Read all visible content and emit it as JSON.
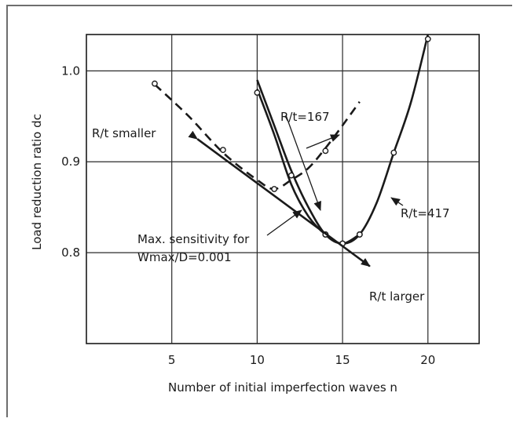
{
  "chart_data": {
    "type": "line",
    "title": "",
    "xlabel": "Number of initial imperfection waves n",
    "ylabel": "Load reduction ratio dc",
    "xlim": [
      0,
      23
    ],
    "ylim": [
      0.7,
      1.04
    ],
    "xticks": [
      "5",
      "10",
      "15",
      "20"
    ],
    "xtick_values": [
      5,
      10,
      15,
      20
    ],
    "yticks": [
      "0.8",
      "0.9",
      "1.0"
    ],
    "ytick_values": [
      0.8,
      0.9,
      1.0
    ],
    "grid": true,
    "series": [
      {
        "name": "R/t=167",
        "style": "solid",
        "points": [
          [
            10,
            0.976
          ],
          [
            12,
            0.885
          ],
          [
            14,
            0.82
          ],
          [
            15,
            0.81
          ],
          [
            16,
            0.82
          ]
        ],
        "curve": [
          [
            10,
            0.99
          ],
          [
            11,
            0.94
          ],
          [
            12,
            0.89
          ],
          [
            13,
            0.85
          ],
          [
            14,
            0.82
          ],
          [
            15,
            0.81
          ],
          [
            16,
            0.82
          ]
        ]
      },
      {
        "name": "R/t=417",
        "style": "solid",
        "points": [
          [
            14,
            0.82
          ],
          [
            15,
            0.81
          ],
          [
            16,
            0.82
          ],
          [
            18,
            0.91
          ],
          [
            20,
            1.035
          ]
        ],
        "curve": [
          [
            10,
            0.98
          ],
          [
            11,
            0.93
          ],
          [
            12,
            0.875
          ],
          [
            13,
            0.84
          ],
          [
            14,
            0.82
          ],
          [
            15,
            0.81
          ],
          [
            16,
            0.82
          ],
          [
            17,
            0.855
          ],
          [
            18,
            0.91
          ],
          [
            19,
            0.965
          ],
          [
            20,
            1.04
          ]
        ]
      },
      {
        "name": "dashed",
        "style": "dashed",
        "points": [
          [
            4,
            0.986
          ],
          [
            8,
            0.913
          ],
          [
            11,
            0.87
          ],
          [
            14,
            0.912
          ]
        ],
        "curve": [
          [
            4,
            0.985
          ],
          [
            6,
            0.95
          ],
          [
            8,
            0.91
          ],
          [
            10,
            0.88
          ],
          [
            11,
            0.87
          ],
          [
            12,
            0.88
          ],
          [
            13,
            0.893
          ],
          [
            14,
            0.915
          ],
          [
            15,
            0.94
          ],
          [
            16,
            0.966
          ]
        ]
      }
    ],
    "sensitivity_line": {
      "from": [
        6.5,
        0.925
      ],
      "to": [
        16.6,
        0.785
      ]
    },
    "annotations": {
      "r167": "R/t=167",
      "r417": "R/t=417",
      "smaller": "R/t smaller",
      "larger": "R/t larger",
      "sens1": "Max. sensitivity for",
      "sens2": "Wmax/D=0.001"
    }
  },
  "colors": {
    "ink": "#1a1a1a",
    "grid": "#2a2a2a",
    "frame": "#6e6e6e"
  }
}
